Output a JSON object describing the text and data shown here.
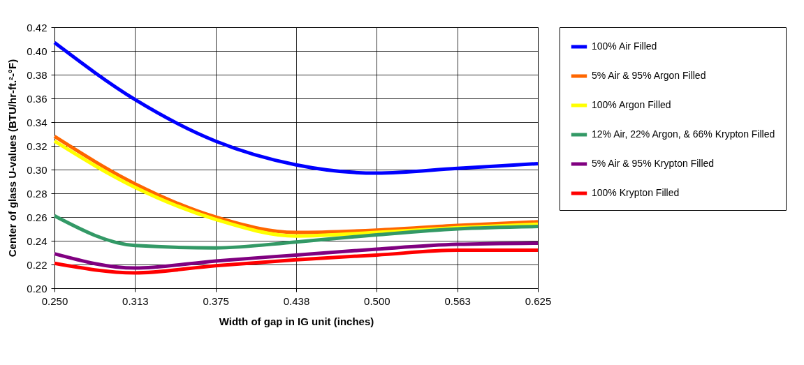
{
  "chart_data": {
    "type": "line",
    "xlabel": "Width of gap in IG unit (inches)",
    "ylabel": "Center of glass U-values (BTU/hr-ft.²-°F)",
    "categories": [
      "0.250",
      "0.313",
      "0.375",
      "0.438",
      "0.500",
      "0.563",
      "0.625"
    ],
    "series": [
      {
        "name": "100% Air Filled",
        "color": "#0000ff",
        "values": [
          0.407,
          0.359,
          0.324,
          0.304,
          0.297,
          0.301,
          0.305
        ]
      },
      {
        "name": "5% Air & 95% Argon Filled",
        "color": "#ff6600",
        "values": [
          0.328,
          0.288,
          0.26,
          0.247,
          0.249,
          0.253,
          0.256
        ]
      },
      {
        "name": "100% Argon Filled",
        "color": "#ffff00",
        "values": [
          0.324,
          0.285,
          0.258,
          0.244,
          0.247,
          0.251,
          0.254
        ]
      },
      {
        "name": "12% Air, 22% Argon, & 66% Krypton Filled",
        "color": "#339966",
        "values": [
          0.261,
          0.236,
          0.234,
          0.239,
          0.245,
          0.25,
          0.252
        ]
      },
      {
        "name": "5% Air & 95% Krypton Filled",
        "color": "#800080",
        "values": [
          0.229,
          0.217,
          0.223,
          0.228,
          0.233,
          0.237,
          0.238
        ]
      },
      {
        "name": "100% Krypton Filled",
        "color": "#ff0000",
        "values": [
          0.221,
          0.213,
          0.219,
          0.224,
          0.228,
          0.232,
          0.232
        ]
      }
    ],
    "ylim": [
      0.2,
      0.42
    ],
    "yticks": [
      {
        "value": 0.2,
        "label": "0.20"
      },
      {
        "value": 0.22,
        "label": "0.22"
      },
      {
        "value": 0.24,
        "label": "0.24"
      },
      {
        "value": 0.26,
        "label": "0.26"
      },
      {
        "value": 0.28,
        "label": "0.28"
      },
      {
        "value": 0.3,
        "label": "0.30"
      },
      {
        "value": 0.32,
        "label": "0.32"
      },
      {
        "value": 0.34,
        "label": "0.34"
      },
      {
        "value": 0.36,
        "label": "0.36"
      },
      {
        "value": 0.38,
        "label": "0.38"
      },
      {
        "value": 0.4,
        "label": "0.40"
      },
      {
        "value": 0.42,
        "label": "0.42"
      }
    ],
    "grid": true,
    "legend": "right",
    "marker": "none",
    "line_style": "solid"
  }
}
